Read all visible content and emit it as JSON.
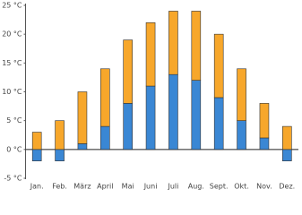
{
  "chart_data": {
    "type": "floating-bar",
    "categories": [
      "Jan.",
      "Feb.",
      "März",
      "April",
      "Mai",
      "Juni",
      "Juli",
      "Aug.",
      "Sept.",
      "Okt.",
      "Nov.",
      "Dez."
    ],
    "series": [
      {
        "color": "#3a87d4",
        "values": [
          -2,
          -2,
          1,
          4,
          8,
          11,
          13,
          12,
          9,
          5,
          2,
          -2
        ]
      },
      {
        "color": "#f7a72b",
        "values": [
          3,
          5,
          10,
          14,
          19,
          22,
          24,
          24,
          20,
          14,
          8,
          4
        ]
      }
    ],
    "ylim": [
      -5,
      25
    ],
    "yticks": [
      {
        "value": -5,
        "label": "-5 °C"
      },
      {
        "value": 0,
        "label": "0 °C"
      },
      {
        "value": 5,
        "label": "5 °C"
      },
      {
        "value": 10,
        "label": "10 °C"
      },
      {
        "value": 15,
        "label": "15 °C"
      },
      {
        "value": 20,
        "label": "20 °C"
      },
      {
        "value": 25,
        "label": "25 °C"
      }
    ]
  }
}
